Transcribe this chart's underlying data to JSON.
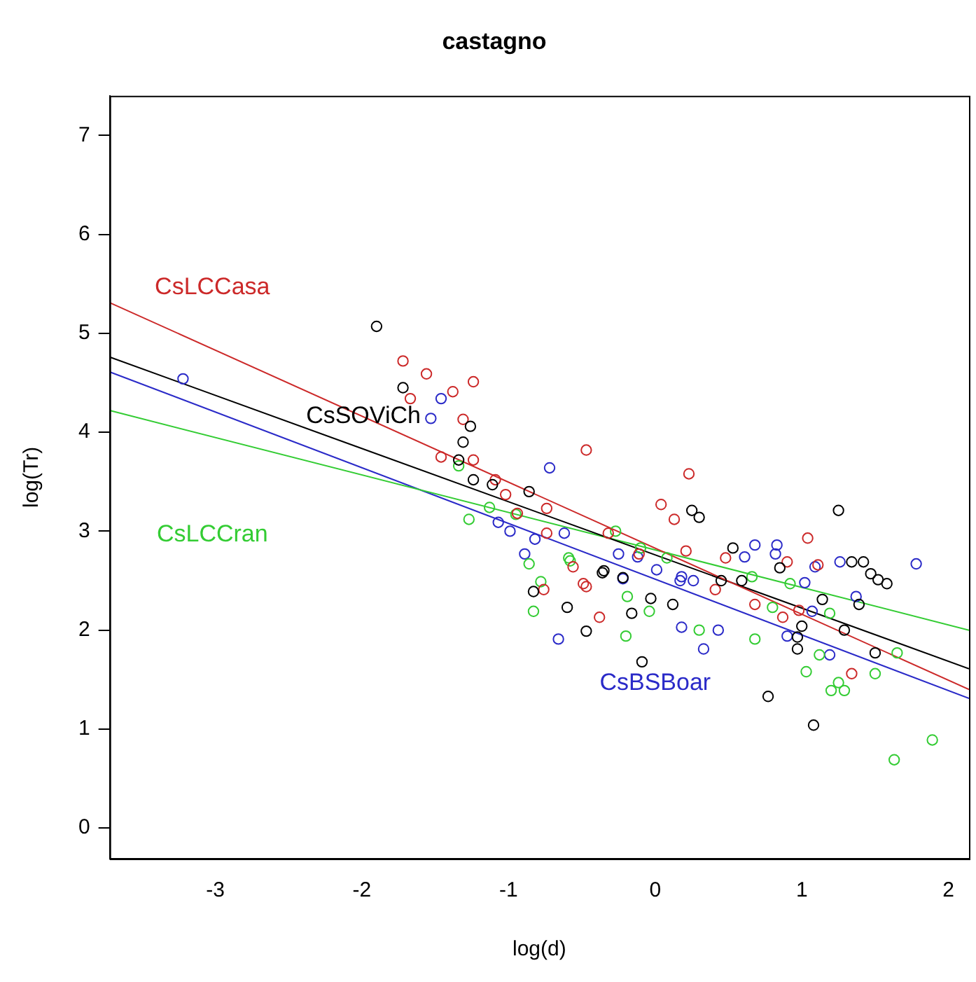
{
  "chart_data": {
    "type": "scatter",
    "title": "castagno",
    "xlabel": "log(d)",
    "ylabel": "log(Tr)",
    "xlim": [
      -3.72,
      2.14
    ],
    "ylim": [
      -0.31,
      7.4
    ],
    "xticks": [
      -3,
      -2,
      -1,
      0,
      1,
      2
    ],
    "yticks": [
      0,
      1,
      2,
      3,
      4,
      5,
      6,
      7
    ],
    "grid": false,
    "legend": false,
    "marker": "circle",
    "series": [
      {
        "color": "#000000",
        "x": [
          -1.9,
          -1.72,
          -1.26,
          -1.31,
          -1.34,
          -1.24,
          -1.11,
          -0.86,
          -0.36,
          -0.22,
          -0.83,
          -0.6,
          -0.16,
          -0.47,
          -0.09,
          0.25,
          0.3,
          -0.03,
          -0.35,
          0.12,
          0.53,
          0.85,
          1.14,
          0.97,
          0.97,
          0.77,
          1.08,
          0.45,
          0.59,
          1.25,
          1.0,
          1.39,
          1.47,
          1.52,
          1.58,
          1.42,
          1.34,
          1.29,
          1.5
        ],
        "values": [
          5.07,
          4.45,
          4.06,
          3.9,
          3.72,
          3.52,
          3.47,
          3.4,
          2.58,
          2.53,
          2.39,
          2.23,
          2.17,
          1.99,
          1.68,
          3.21,
          3.14,
          2.32,
          2.6,
          2.26,
          2.83,
          2.63,
          2.31,
          1.93,
          1.81,
          1.33,
          1.04,
          2.5,
          2.5,
          3.21,
          2.04,
          2.26,
          2.57,
          2.51,
          2.47,
          2.69,
          2.69,
          2.0,
          1.77
        ]
      },
      {
        "color": "#cc2929",
        "x": [
          -1.72,
          -1.56,
          -1.38,
          -1.24,
          -1.67,
          -1.31,
          -1.46,
          -1.24,
          -1.09,
          -1.02,
          -0.74,
          -0.47,
          -0.94,
          -0.74,
          -0.56,
          -0.49,
          -0.47,
          -0.76,
          -0.38,
          -0.32,
          -0.11,
          0.23,
          0.04,
          0.13,
          0.21,
          0.41,
          1.04,
          0.68,
          0.87,
          0.48,
          0.9,
          1.11,
          0.98,
          1.34
        ],
        "values": [
          4.72,
          4.59,
          4.41,
          4.51,
          4.34,
          4.13,
          3.75,
          3.72,
          3.52,
          3.37,
          3.23,
          3.82,
          3.18,
          2.98,
          2.64,
          2.47,
          2.44,
          2.41,
          2.13,
          2.98,
          2.77,
          3.58,
          3.27,
          3.12,
          2.8,
          2.41,
          2.93,
          2.26,
          2.13,
          2.73,
          2.69,
          2.66,
          2.2,
          1.56
        ]
      },
      {
        "color": "#33cc33",
        "x": [
          -1.34,
          -1.13,
          -1.27,
          -0.95,
          -0.86,
          -0.78,
          -0.83,
          -0.58,
          -0.19,
          -0.2,
          -0.04,
          -0.1,
          0.3,
          -0.59,
          -0.27,
          0.08,
          0.68,
          0.66,
          0.92,
          0.8,
          1.03,
          1.12,
          1.19,
          1.2,
          1.29,
          1.25,
          1.5,
          1.65,
          1.89,
          1.63
        ],
        "values": [
          3.66,
          3.24,
          3.12,
          3.17,
          2.67,
          2.49,
          2.19,
          2.7,
          2.34,
          1.94,
          2.19,
          2.83,
          2.0,
          2.73,
          3.0,
          2.73,
          1.91,
          2.54,
          2.47,
          2.23,
          1.58,
          1.75,
          2.17,
          1.39,
          1.39,
          1.47,
          1.56,
          1.77,
          0.89,
          0.69
        ]
      },
      {
        "color": "#2a2ac8",
        "x": [
          -3.22,
          -1.46,
          -1.53,
          -0.72,
          -1.07,
          -0.99,
          -0.82,
          -0.62,
          -0.25,
          -0.89,
          -0.66,
          -0.22,
          0.01,
          0.17,
          0.26,
          0.43,
          -0.12,
          0.68,
          0.83,
          0.61,
          0.18,
          0.33,
          0.18,
          1.02,
          1.09,
          0.82,
          1.26,
          1.78,
          1.37,
          0.9,
          1.19,
          1.07
        ],
        "values": [
          4.54,
          4.34,
          4.14,
          3.64,
          3.09,
          3.0,
          2.92,
          2.98,
          2.77,
          2.77,
          1.91,
          2.52,
          2.61,
          2.5,
          2.5,
          2.0,
          2.74,
          2.86,
          2.86,
          2.74,
          2.54,
          1.81,
          2.03,
          2.48,
          2.64,
          2.77,
          2.69,
          2.67,
          2.34,
          1.94,
          1.75,
          2.19
        ]
      },
      {
        "type": "line",
        "name": "CsLCCasa",
        "marker": "none",
        "color": "#cc2929",
        "x": [
          -3.72,
          2.14
        ],
        "values": [
          5.31,
          1.4
        ]
      },
      {
        "type": "line",
        "name": "CsSOViCh",
        "marker": "none",
        "color": "#000000",
        "x": [
          -3.72,
          2.14
        ],
        "values": [
          4.76,
          1.61
        ]
      },
      {
        "type": "line",
        "name": "CsLCCran",
        "marker": "none",
        "color": "#33cc33",
        "x": [
          -3.72,
          2.14
        ],
        "values": [
          4.22,
          2.0
        ]
      },
      {
        "type": "line",
        "name": "CsBSBoar",
        "marker": "none",
        "color": "#2a2ac8",
        "x": [
          -3.72,
          2.14
        ],
        "values": [
          4.61,
          1.31
        ]
      }
    ]
  }
}
